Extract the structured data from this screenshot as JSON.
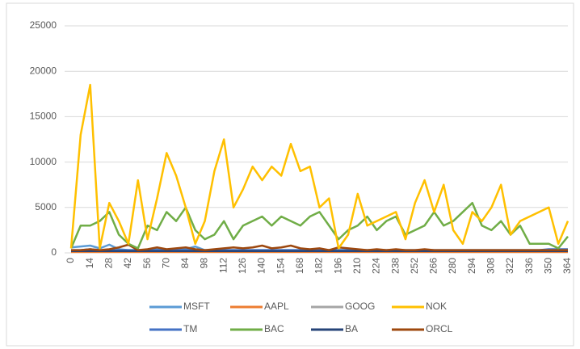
{
  "chart_data": {
    "type": "line",
    "x": [
      0,
      7,
      14,
      21,
      28,
      35,
      42,
      49,
      56,
      63,
      70,
      77,
      84,
      91,
      98,
      105,
      112,
      119,
      126,
      133,
      140,
      147,
      154,
      161,
      168,
      175,
      182,
      189,
      196,
      203,
      210,
      217,
      224,
      231,
      238,
      245,
      252,
      259,
      266,
      273,
      280,
      287,
      294,
      301,
      308,
      315,
      322,
      329,
      336,
      343,
      350,
      357,
      364
    ],
    "xlim": [
      0,
      364
    ],
    "xticks": [
      0,
      14,
      28,
      42,
      56,
      70,
      84,
      98,
      112,
      126,
      140,
      154,
      168,
      182,
      196,
      210,
      224,
      238,
      252,
      266,
      280,
      294,
      308,
      322,
      336,
      350,
      364
    ],
    "ylim": [
      0,
      25000
    ],
    "yticks": [
      0,
      5000,
      10000,
      15000,
      20000,
      25000
    ],
    "grid": true,
    "series": [
      {
        "name": "MSFT",
        "color": "#5b9bd5",
        "values": [
          600,
          700,
          800,
          500,
          900,
          400,
          300,
          300,
          300,
          400,
          300,
          300,
          400,
          700,
          300,
          300,
          300,
          300,
          300,
          300,
          300,
          300,
          300,
          300,
          300,
          300,
          300,
          300,
          300,
          300,
          300,
          300,
          300,
          300,
          300,
          300,
          300,
          300,
          300,
          300,
          300,
          300,
          300,
          300,
          300,
          300,
          300,
          300,
          300,
          300,
          300,
          300,
          300
        ]
      },
      {
        "name": "AAPL",
        "color": "#ed7d31",
        "values": [
          100,
          100,
          100,
          100,
          100,
          100,
          100,
          100,
          100,
          100,
          100,
          100,
          100,
          100,
          100,
          100,
          100,
          100,
          100,
          100,
          100,
          100,
          100,
          100,
          100,
          100,
          100,
          100,
          100,
          100,
          100,
          100,
          100,
          100,
          100,
          100,
          100,
          100,
          100,
          100,
          100,
          100,
          100,
          100,
          100,
          100,
          100,
          100,
          100,
          100,
          100,
          100,
          100
        ]
      },
      {
        "name": "GOOG",
        "color": "#a5a5a5",
        "values": [
          200,
          200,
          200,
          200,
          200,
          200,
          200,
          200,
          200,
          200,
          200,
          200,
          200,
          200,
          200,
          200,
          200,
          200,
          200,
          200,
          200,
          200,
          200,
          200,
          200,
          200,
          200,
          200,
          200,
          200,
          200,
          200,
          200,
          200,
          200,
          200,
          200,
          200,
          200,
          200,
          200,
          200,
          200,
          200,
          200,
          200,
          200,
          200,
          200,
          200,
          200,
          200,
          200
        ]
      },
      {
        "name": "NOK",
        "color": "#ffc000",
        "values": [
          500,
          13000,
          18500,
          500,
          5500,
          3500,
          1000,
          8000,
          1500,
          6000,
          11000,
          8500,
          5000,
          1000,
          3500,
          9000,
          12500,
          5000,
          7000,
          9500,
          8000,
          9500,
          8500,
          12000,
          9000,
          9500,
          5000,
          6000,
          500,
          2000,
          6500,
          3000,
          3500,
          4000,
          4500,
          1500,
          5500,
          8000,
          4500,
          7500,
          2500,
          1000,
          4500,
          3500,
          5000,
          7500,
          2000,
          3500,
          4000,
          4500,
          5000,
          1000,
          3500
        ]
      },
      {
        "name": "TM",
        "color": "#4472c4",
        "values": [
          300,
          300,
          400,
          300,
          300,
          300,
          300,
          300,
          300,
          300,
          300,
          300,
          300,
          300,
          300,
          300,
          300,
          300,
          300,
          300,
          300,
          300,
          300,
          300,
          300,
          300,
          300,
          300,
          300,
          300,
          300,
          300,
          300,
          300,
          300,
          300,
          300,
          300,
          300,
          300,
          300,
          300,
          300,
          300,
          300,
          300,
          300,
          300,
          300,
          300,
          400,
          400,
          400
        ]
      },
      {
        "name": "BAC",
        "color": "#70ad47",
        "values": [
          500,
          3000,
          3000,
          3500,
          4500,
          2000,
          1000,
          500,
          3000,
          2500,
          4500,
          3500,
          5000,
          2500,
          1500,
          2000,
          3500,
          1500,
          3000,
          3500,
          4000,
          3000,
          4000,
          3500,
          3000,
          4000,
          4500,
          3000,
          1500,
          2500,
          3000,
          4000,
          2500,
          3500,
          4000,
          2000,
          2500,
          3000,
          4500,
          3000,
          3500,
          4500,
          5500,
          3000,
          2500,
          3500,
          2000,
          3000,
          1000,
          1000,
          1000,
          500,
          1800
        ]
      },
      {
        "name": "BA",
        "color": "#264478",
        "values": [
          200,
          200,
          200,
          200,
          200,
          200,
          200,
          200,
          200,
          200,
          200,
          200,
          200,
          200,
          200,
          200,
          200,
          200,
          200,
          200,
          200,
          200,
          200,
          200,
          200,
          200,
          200,
          200,
          200,
          200,
          200,
          200,
          200,
          200,
          200,
          200,
          200,
          200,
          200,
          200,
          200,
          200,
          200,
          200,
          200,
          200,
          200,
          200,
          200,
          200,
          200,
          200,
          200
        ]
      },
      {
        "name": "ORCL",
        "color": "#9e480e",
        "values": [
          300,
          300,
          400,
          300,
          400,
          600,
          900,
          300,
          400,
          600,
          400,
          500,
          600,
          400,
          300,
          400,
          500,
          600,
          500,
          600,
          800,
          500,
          600,
          800,
          500,
          400,
          500,
          300,
          600,
          500,
          400,
          300,
          400,
          300,
          400,
          300,
          300,
          400,
          300,
          300,
          300,
          300,
          300,
          300,
          300,
          300,
          300,
          300,
          300,
          300,
          300,
          300,
          300
        ]
      }
    ]
  }
}
